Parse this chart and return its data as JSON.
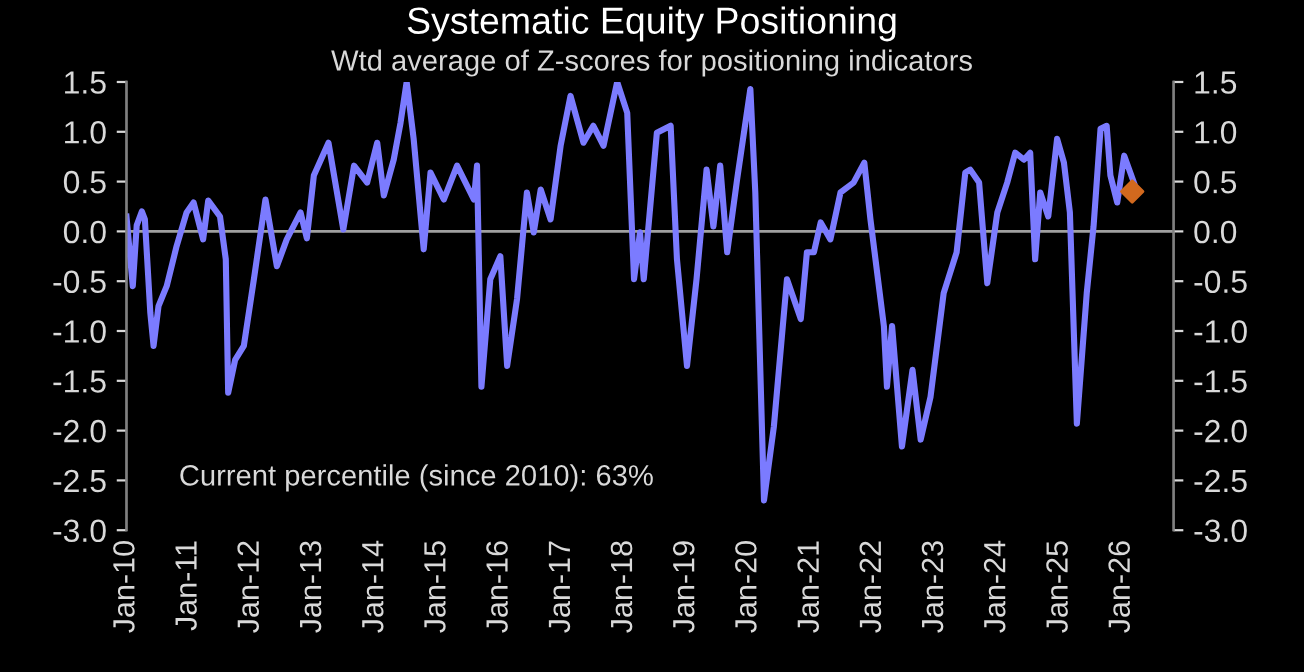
{
  "chart_data": {
    "type": "line",
    "title": "Systematic Equity Positioning",
    "subtitle": "Wtd average of Z-scores for positioning indicators",
    "annotations": [
      "Current percentile (since 2010): 63%"
    ],
    "series": [
      {
        "color": "#7b7bff",
        "x": [
          "2010-01-01",
          "2010-02-07",
          "2010-03-02",
          "2010-04-01",
          "2010-04-19",
          "2010-05-21",
          "2010-06-09",
          "2010-07-08",
          "2010-08-25",
          "2010-10-22",
          "2010-12-20",
          "2011-01-30",
          "2011-03-27",
          "2011-04-26",
          "2011-07-04",
          "2011-08-07",
          "2011-08-21",
          "2011-10-01",
          "2011-11-21",
          "2012-01-19",
          "2012-03-27",
          "2012-06-02",
          "2012-07-30",
          "2012-10-19",
          "2012-11-25",
          "2013-01-05",
          "2013-04-01",
          "2013-06-27",
          "2013-08-29",
          "2013-11-14",
          "2014-01-12",
          "2014-02-20",
          "2014-04-19",
          "2014-05-29",
          "2014-07-04",
          "2014-08-14",
          "2014-10-12",
          "2014-11-21",
          "2015-02-07",
          "2015-04-26",
          "2015-08-03",
          "2015-08-21",
          "2015-09-16",
          "2015-11-07",
          "2016-01-05",
          "2016-02-14",
          "2016-04-12",
          "2016-06-09",
          "2016-07-19",
          "2016-08-29",
          "2016-10-26",
          "2016-12-24",
          "2017-02-20",
          "2017-05-07",
          "2017-07-04",
          "2017-09-02",
          "2017-11-21",
          "2018-01-19",
          "2018-02-28",
          "2018-04-04",
          "2018-04-26",
          "2018-07-12",
          "2018-10-01",
          "2018-11-07",
          "2019-01-05",
          "2019-03-02",
          "2019-04-30",
          "2019-06-09",
          "2019-07-19",
          "2019-08-29",
          "2019-10-26",
          "2020-01-12",
          "2020-02-10",
          "2020-04-01",
          "2020-05-29",
          "2020-08-14",
          "2020-11-03",
          "2020-12-09",
          "2021-01-19",
          "2021-02-28",
          "2021-04-26",
          "2021-06-24",
          "2021-09-09",
          "2021-11-11",
          "2021-12-17",
          "2022-03-06",
          "2022-03-24",
          "2022-04-23",
          "2022-06-20",
          "2022-08-21",
          "2022-10-08",
          "2022-12-05",
          "2023-02-20",
          "2023-05-07",
          "2023-06-27",
          "2023-07-26",
          "2023-09-16",
          "2023-11-03",
          "2024-01-01",
          "2024-02-28",
          "2024-04-15",
          "2024-06-05",
          "2024-07-12",
          "2024-08-10",
          "2024-09-09",
          "2024-10-26",
          "2024-12-17",
          "2025-01-26",
          "2025-03-02",
          "2025-04-12",
          "2025-06-09",
          "2025-07-19",
          "2025-08-29",
          "2025-10-04",
          "2025-10-26",
          "2025-12-05",
          "2026-01-15",
          "2026-03-13"
        ],
        "values": [
          0.15,
          -0.55,
          0.06,
          0.2,
          0.12,
          -0.82,
          -1.15,
          -0.75,
          -0.55,
          -0.15,
          0.19,
          0.29,
          -0.08,
          0.31,
          0.15,
          -0.28,
          -1.62,
          -1.29,
          -1.15,
          -0.48,
          0.32,
          -0.35,
          -0.08,
          0.19,
          -0.07,
          0.56,
          0.89,
          0.02,
          0.66,
          0.49,
          0.89,
          0.36,
          0.72,
          1.09,
          1.5,
          0.93,
          -0.18,
          0.59,
          0.32,
          0.66,
          0.32,
          0.66,
          -1.56,
          -0.48,
          -0.25,
          -1.35,
          -0.68,
          0.39,
          -0.01,
          0.42,
          0.12,
          0.86,
          1.36,
          0.89,
          1.06,
          0.86,
          1.5,
          1.19,
          -0.48,
          -0.01,
          -0.48,
          0.99,
          1.06,
          -0.28,
          -1.35,
          -0.48,
          0.62,
          0.05,
          0.66,
          -0.21,
          0.52,
          1.43,
          0.39,
          -2.7,
          -1.96,
          -0.48,
          -0.88,
          -0.21,
          -0.21,
          0.09,
          -0.08,
          0.39,
          0.49,
          0.69,
          0.12,
          -0.95,
          -1.56,
          -0.95,
          -2.16,
          -1.39,
          -2.09,
          -1.66,
          -0.62,
          -0.21,
          0.59,
          0.62,
          0.49,
          -0.52,
          0.19,
          0.49,
          0.79,
          0.72,
          0.79,
          -0.28,
          0.39,
          0.15,
          0.93,
          0.69,
          0.19,
          -1.93,
          -0.62,
          0.05,
          1.03,
          1.06,
          0.56,
          0.29,
          0.76,
          0.49
        ]
      },
      {
        "type": "scatter",
        "color": "#d2691e",
        "marker": "diamond",
        "x": [
          "2026-03-03"
        ],
        "values": [
          0.4
        ]
      }
    ],
    "xlim": [
      "2010-01-01",
      "2026-11-01"
    ],
    "xticks": [
      {
        "value": "2010-01-01",
        "label": "Jan-10"
      },
      {
        "value": "2011-01-01",
        "label": "Jan-11"
      },
      {
        "value": "2012-01-01",
        "label": "Jan-12"
      },
      {
        "value": "2013-01-01",
        "label": "Jan-13"
      },
      {
        "value": "2014-01-01",
        "label": "Jan-14"
      },
      {
        "value": "2015-01-01",
        "label": "Jan-15"
      },
      {
        "value": "2016-01-01",
        "label": "Jan-16"
      },
      {
        "value": "2017-01-01",
        "label": "Jan-17"
      },
      {
        "value": "2018-01-01",
        "label": "Jan-18"
      },
      {
        "value": "2019-01-01",
        "label": "Jan-19"
      },
      {
        "value": "2020-01-01",
        "label": "Jan-20"
      },
      {
        "value": "2021-01-01",
        "label": "Jan-21"
      },
      {
        "value": "2022-01-01",
        "label": "Jan-22"
      },
      {
        "value": "2023-01-01",
        "label": "Jan-23"
      },
      {
        "value": "2024-01-01",
        "label": "Jan-24"
      },
      {
        "value": "2025-01-01",
        "label": "Jan-25"
      },
      {
        "value": "2026-01-01",
        "label": "Jan-26"
      }
    ],
    "ylim": [
      -3.0,
      1.5
    ],
    "yticks": [
      {
        "value": -3.0,
        "label": "-3.0"
      },
      {
        "value": -2.5,
        "label": "-2.5"
      },
      {
        "value": -2.0,
        "label": "-2.0"
      },
      {
        "value": -1.5,
        "label": "-1.5"
      },
      {
        "value": -1.0,
        "label": "-1.0"
      },
      {
        "value": -0.5,
        "label": "-0.5"
      },
      {
        "value": 0.0,
        "label": "0.0"
      },
      {
        "value": 0.5,
        "label": "0.5"
      },
      {
        "value": 1.0,
        "label": "1.0"
      },
      {
        "value": 1.5,
        "label": "1.5"
      }
    ],
    "y2lim": [
      -3.0,
      1.5
    ],
    "y2ticks": [
      {
        "value": -3.0,
        "label": "-3.0"
      },
      {
        "value": -2.5,
        "label": "-2.5"
      },
      {
        "value": -2.0,
        "label": "-2.0"
      },
      {
        "value": -1.5,
        "label": "-1.5"
      },
      {
        "value": -1.0,
        "label": "-1.0"
      },
      {
        "value": -0.5,
        "label": "-0.5"
      },
      {
        "value": 0.0,
        "label": "0.0"
      },
      {
        "value": 0.5,
        "label": "0.5"
      },
      {
        "value": 1.0,
        "label": "1.0"
      },
      {
        "value": 1.5,
        "label": "1.5"
      }
    ],
    "ref_lines": [
      {
        "axis": "y",
        "value": 0,
        "color": "#a0a0a0"
      }
    ],
    "grid": false,
    "legend": false
  }
}
